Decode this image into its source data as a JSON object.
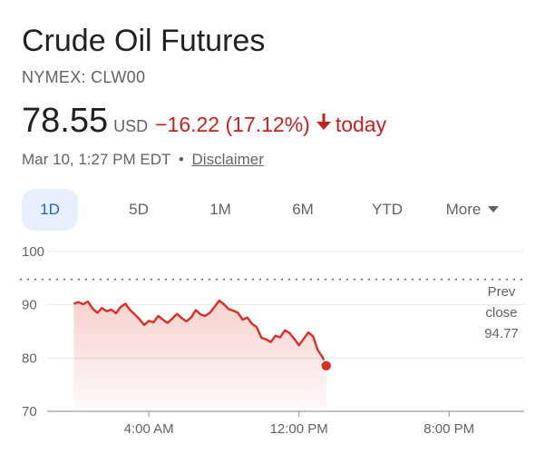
{
  "quote": {
    "title": "Crude Oil Futures",
    "exchange": "NYMEX: CLW00",
    "price": "78.55",
    "currency": "USD",
    "change": "−16.22 (17.12%)",
    "change_direction_icon": "arrow-down-icon",
    "period": "today",
    "timestamp": "Mar 10, 1:27 PM EDT",
    "separator": "•",
    "disclaimer": "Disclaimer"
  },
  "tabs": [
    {
      "label": "1D",
      "active": true
    },
    {
      "label": "5D",
      "active": false
    },
    {
      "label": "1M",
      "active": false
    },
    {
      "label": "6M",
      "active": false
    },
    {
      "label": "YTD",
      "active": false
    },
    {
      "label": "More",
      "active": false,
      "icon": "caret-down-icon"
    }
  ],
  "colors": {
    "negative": "#c5221f",
    "line": "#d93025",
    "active_tab_bg": "#e8f0fe",
    "active_tab_text": "#1967d2"
  },
  "chart_data": {
    "type": "area",
    "y_ticks": [
      100,
      90,
      80,
      70
    ],
    "ylim": [
      70,
      100
    ],
    "x_ticks": [
      {
        "hour": 4,
        "label": "4:00 AM"
      },
      {
        "hour": 12,
        "label": "12:00 PM"
      },
      {
        "hour": 20,
        "label": "8:00 PM"
      }
    ],
    "xlim": [
      -2,
      24
    ],
    "prev_close": {
      "value": 94.77,
      "label_lines": [
        "Prev",
        "close",
        "94.77"
      ]
    },
    "series": [
      {
        "x": [
          0,
          0.25,
          0.5,
          0.75,
          1,
          1.25,
          1.5,
          1.75,
          2,
          2.25,
          2.5,
          2.75,
          3,
          3.25,
          3.5,
          3.75,
          4,
          4.25,
          4.5,
          4.75,
          5,
          5.25,
          5.5,
          5.75,
          6,
          6.25,
          6.5,
          6.75,
          7,
          7.25,
          7.5,
          7.75,
          8,
          8.25,
          8.5,
          8.75,
          9,
          9.25,
          9.5,
          9.75,
          10,
          10.25,
          10.5,
          10.75,
          11,
          11.25,
          11.5,
          11.75,
          12,
          12.25,
          12.5,
          12.75,
          13,
          13.25,
          13.45
        ],
        "values": [
          90.2,
          90.5,
          90.1,
          90.6,
          89.3,
          88.5,
          89.4,
          88.8,
          89.1,
          88.4,
          89.6,
          90.2,
          89.0,
          88.2,
          87.3,
          86.2,
          87.0,
          86.7,
          87.9,
          87.2,
          86.6,
          87.4,
          88.3,
          87.5,
          86.9,
          87.6,
          89.0,
          88.2,
          87.9,
          88.5,
          89.6,
          90.8,
          90.1,
          89.2,
          88.9,
          88.5,
          87.2,
          87.6,
          86.4,
          85.8,
          83.8,
          83.5,
          83.0,
          84.2,
          83.9,
          85.2,
          84.7,
          83.6,
          82.4,
          83.6,
          84.8,
          84.1,
          81.5,
          80.2,
          78.55
        ]
      }
    ]
  }
}
